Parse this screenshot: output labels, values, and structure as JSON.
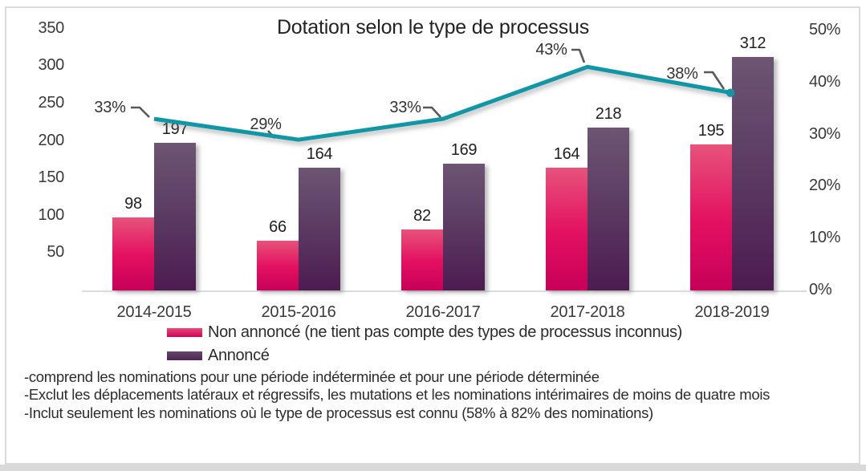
{
  "chart_data": {
    "type": "combo-bar-line",
    "title": "Dotation selon le type de processus",
    "categories": [
      "2014-2015",
      "2015-2016",
      "2016-2017",
      "2017-2018",
      "2018-2019"
    ],
    "series": [
      {
        "name": "Non annoncé (ne tient pas compte des types de processus inconnus)",
        "type": "bar",
        "values": [
          98,
          66,
          82,
          164,
          195
        ],
        "color_top": "#e7537b",
        "color_bottom": "#c70059"
      },
      {
        "name": "Annoncé",
        "type": "bar",
        "values": [
          197,
          164,
          169,
          218,
          312
        ],
        "color_top": "#6d5573",
        "color_bottom": "#4d1b51"
      },
      {
        "type": "line",
        "axis": "right",
        "values_percent": [
          33,
          29,
          33,
          43,
          38
        ],
        "point_labels": [
          "33%",
          "29%",
          "33%",
          "43%",
          "38%"
        ],
        "color": "#1196a5"
      }
    ],
    "left_axis": {
      "ticks": [
        350,
        300,
        250,
        200,
        150,
        100,
        50
      ],
      "range": [
        0,
        350
      ]
    },
    "right_axis": {
      "ticks": [
        50,
        40,
        30,
        20,
        10,
        0
      ],
      "suffix": "%",
      "range": [
        0,
        50
      ]
    },
    "legend_position": "bottom-left",
    "grid": "off"
  },
  "footnotes": [
    "-comprend les nominations pour une période indéterminée et pour une période déterminée",
    "-Exclut les déplacements latéraux et régressifs, les mutations et les nominations intérimaires de moins de quatre mois",
    "-Inclut seulement les nominations où le type de processus est connu (58% à 82% des nominations)"
  ]
}
